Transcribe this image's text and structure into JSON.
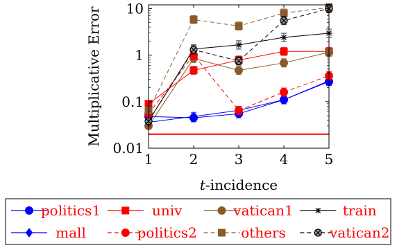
{
  "chart_data": {
    "type": "line",
    "title": "",
    "xlabel_italic": "t",
    "xlabel_rest": "-incidence",
    "ylabel": "Multiplicative Error",
    "x": [
      1,
      2,
      3,
      4,
      5
    ],
    "xlim": [
      1,
      5
    ],
    "ylim": [
      0.01,
      12
    ],
    "yscale": "log",
    "x_ticks": [
      "1",
      "2",
      "3",
      "4",
      "5"
    ],
    "y_ticks": [
      {
        "value": 0.01,
        "label": "0.01"
      },
      {
        "value": 0.1,
        "label": "0.1"
      },
      {
        "value": 1,
        "label": "1"
      },
      {
        "value": 10,
        "label": "10"
      }
    ],
    "grid": false,
    "legend_position": "bottom",
    "series": [
      {
        "name": "politics1",
        "color": "#0000ff",
        "marker": "circle",
        "dash": "solid",
        "values": [
          0.048,
          0.045,
          0.055,
          0.11,
          0.27
        ]
      },
      {
        "name": "univ",
        "color": "#ff0000",
        "marker": "square",
        "dash": "solid",
        "values": [
          0.09,
          0.47,
          0.78,
          1.2,
          1.2
        ]
      },
      {
        "name": "vatican1",
        "color": "#8b5a2b",
        "marker": "circle",
        "dash": "solid",
        "values": [
          0.03,
          0.85,
          0.47,
          0.68,
          1.15
        ]
      },
      {
        "name": "train",
        "color": "#000000",
        "marker": "star",
        "dash": "solid",
        "values": [
          0.038,
          1.35,
          1.65,
          2.4,
          2.95
        ]
      },
      {
        "name": "mall",
        "color": "#0000ff",
        "marker": "diamond",
        "dash": "solid",
        "values": [
          0.036,
          0.048,
          0.065,
          0.11,
          0.28
        ]
      },
      {
        "name": "politics2",
        "color": "#ff0000",
        "marker": "circle",
        "dash": "dashed",
        "values": [
          0.055,
          1.0,
          0.065,
          0.16,
          0.36
        ]
      },
      {
        "name": "others",
        "color": "#8b5a2b",
        "marker": "square",
        "dash": "dashed",
        "values": [
          0.065,
          5.8,
          4.2,
          8.0,
          10.5
        ]
      },
      {
        "name": "vatican2",
        "color": "#000000",
        "marker": "otimes",
        "dash": "dashed",
        "values": [
          0.038,
          1.3,
          0.75,
          5.5,
          10.0
        ]
      }
    ],
    "reference_line": {
      "value": 0.02,
      "color": "#ff0000"
    }
  }
}
